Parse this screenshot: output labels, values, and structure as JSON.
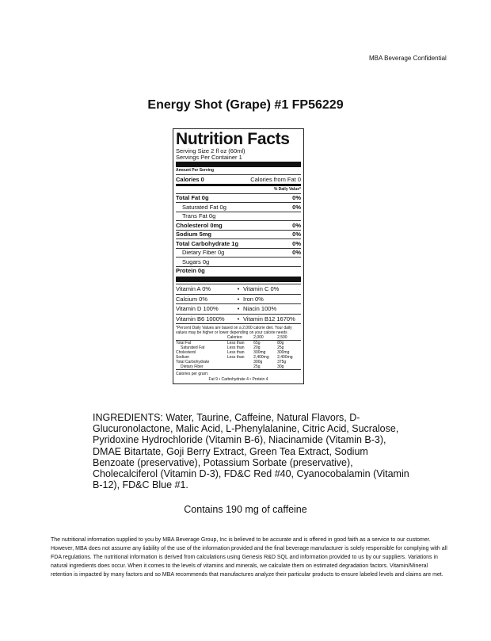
{
  "header": {
    "confidential": "MBA Beverage Confidential"
  },
  "title": "Energy Shot (Grape) #1 FP56229",
  "label": {
    "heading": "Nutrition Facts",
    "serving_size": "Serving Size 2 fl oz (60ml)",
    "servings": "Servings Per Container 1",
    "amount_per_serving": "Amount Per Serving",
    "calories": "Calories 0",
    "calories_fat": "Calories from Fat 0",
    "dv_header": "% Daily Value*",
    "nutrients": [
      {
        "name": "Total Fat 0g",
        "dv": "0%",
        "bold": true,
        "indent": false
      },
      {
        "name": "Saturated Fat 0g",
        "dv": "0%",
        "bold": false,
        "indent": true
      },
      {
        "name": "Trans Fat 0g",
        "dv": "",
        "bold": false,
        "indent": true
      },
      {
        "name": "Cholesterol 0mg",
        "dv": "0%",
        "bold": true,
        "indent": false
      },
      {
        "name": "Sodium 5mg",
        "dv": "0%",
        "bold": true,
        "indent": false
      },
      {
        "name": "Total Carbohydrate 1g",
        "dv": "0%",
        "bold": true,
        "indent": false
      },
      {
        "name": "Dietary Fiber 0g",
        "dv": "0%",
        "bold": false,
        "indent": true
      },
      {
        "name": "Sugars 0g",
        "dv": "",
        "bold": false,
        "indent": true
      },
      {
        "name": "Protein 0g",
        "dv": "",
        "bold": true,
        "indent": false
      }
    ],
    "vitamins": [
      [
        "Vitamin A 0%",
        "Vitamin C 0%"
      ],
      [
        "Calcium 0%",
        "Iron 0%"
      ],
      [
        "Vitamin D 100%",
        "Niacin 100%"
      ],
      [
        "Vitamin B6 1000%",
        "Vitamin B12 1670%"
      ]
    ],
    "footnote": "*Percent Daily Values are based on a 2,000 calorie diet. Your daily values may be higher or lower depending on your calorie needs",
    "dv_table": [
      [
        "",
        "Calories:",
        "2,000",
        "2,500"
      ],
      [
        "Total Fat",
        "Less than",
        "65g",
        "80g"
      ],
      [
        "  Saturated Fat",
        "Less than",
        "20g",
        "25g"
      ],
      [
        "Cholesterol",
        "Less than",
        "300mg",
        "300mg"
      ],
      [
        "Sodium",
        "Less than",
        "2,400mg",
        "2,400mg"
      ],
      [
        "Total Carbohydrate",
        "",
        "300g",
        "375g"
      ],
      [
        "  Dietary Fiber",
        "",
        "25g",
        "30g"
      ]
    ],
    "cal_per_gram": "Calories per gram:",
    "cal_per_gram_values": "Fat 9  •  Carbohydrate 4  •  Protein 4"
  },
  "ingredients": "INGREDIENTS: Water, Taurine, Caffeine, Natural Flavors, D-Glucuronolactone, Malic Acid, L-Phenylalanine, Citric Acid, Sucralose, Pyridoxine Hydrochloride (Vitamin B-6), Niacinamide (Vitamin B-3), DMAE Bitartate, Goji Berry Extract, Green Tea Extract, Sodium Benzoate (preservative), Potassium Sorbate (preservative), Cholecalciferol (Vitamin D-3), FD&C Red #40, Cyanocobalamin (Vitamin B-12), FD&C Blue #1.",
  "caffeine": "Contains 190 mg of caffeine",
  "disclaimer": "The nutritional information supplied to you by MBA Beverage Group, Inc is believed to be accurate and is offered in good faith as a service to our customer. However, MBA does not assume any liability of the use of the information provided and the final beverage manufacturer is solely responsible for complying with all FDA regulations. The nutritional information is derived from calculations using Genesis R&D SQL and information provided to us by our suppliers. Variations in natural ingredients does occur. When it comes to the levels of vitamins and minerals, we calculate them on estimated degradation factors. Vitamin/Mineral retention is impacted by many factors and so MBA recommends that manufactures analyze their particular products to ensure labeled levels and claims are met."
}
